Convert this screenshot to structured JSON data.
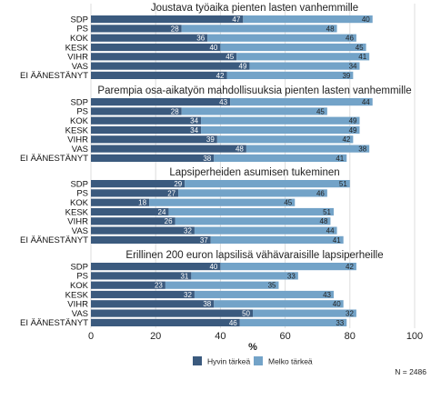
{
  "chart_data": {
    "type": "bar",
    "orientation": "horizontal",
    "stacked": true,
    "xlabel": "%",
    "xlim": [
      0,
      100
    ],
    "xticks": [
      0,
      20,
      40,
      60,
      80,
      100
    ],
    "grid": true,
    "legend_position": "bottom",
    "note": "N = 2486",
    "colors": {
      "Hyvin tärkeä": "#3b5a7e",
      "Melko tärkeä": "#73a3c8"
    },
    "series_names": [
      "Hyvin tärkeä",
      "Melko tärkeä"
    ],
    "categories": [
      "SDP",
      "PS",
      "KOK",
      "KESK",
      "VIHR",
      "VAS",
      "EI ÄÄNESTÄNYT"
    ],
    "panels": [
      {
        "title": "Joustava työaika pienten lasten vanhemmille",
        "series": [
          {
            "name": "Hyvin tärkeä",
            "values": [
              47,
              28,
              36,
              40,
              45,
              49,
              42
            ]
          },
          {
            "name": "Melko tärkeä",
            "values": [
              40,
              48,
              46,
              45,
              41,
              34,
              39
            ]
          }
        ]
      },
      {
        "title": "Parempia osa-aikatyön mahdollisuuksia pienten lasten vanhemmille",
        "series": [
          {
            "name": "Hyvin tärkeä",
            "values": [
              43,
              28,
              34,
              34,
              39,
              48,
              38
            ]
          },
          {
            "name": "Melko tärkeä",
            "values": [
              44,
              45,
              49,
              49,
              42,
              38,
              41
            ]
          }
        ]
      },
      {
        "title": "Lapsiperheiden asumisen tukeminen",
        "series": [
          {
            "name": "Hyvin tärkeä",
            "values": [
              29,
              27,
              18,
              24,
              26,
              32,
              37
            ]
          },
          {
            "name": "Melko tärkeä",
            "values": [
              51,
              46,
              45,
              51,
              48,
              44,
              41
            ]
          }
        ]
      },
      {
        "title": "Erillinen 200 euron lapsilisä vähävaraisille lapsiperheille",
        "series": [
          {
            "name": "Hyvin tärkeä",
            "values": [
              40,
              31,
              23,
              32,
              38,
              50,
              46
            ]
          },
          {
            "name": "Melko tärkeä",
            "values": [
              42,
              33,
              35,
              43,
              40,
              32,
              33
            ]
          }
        ]
      }
    ]
  }
}
